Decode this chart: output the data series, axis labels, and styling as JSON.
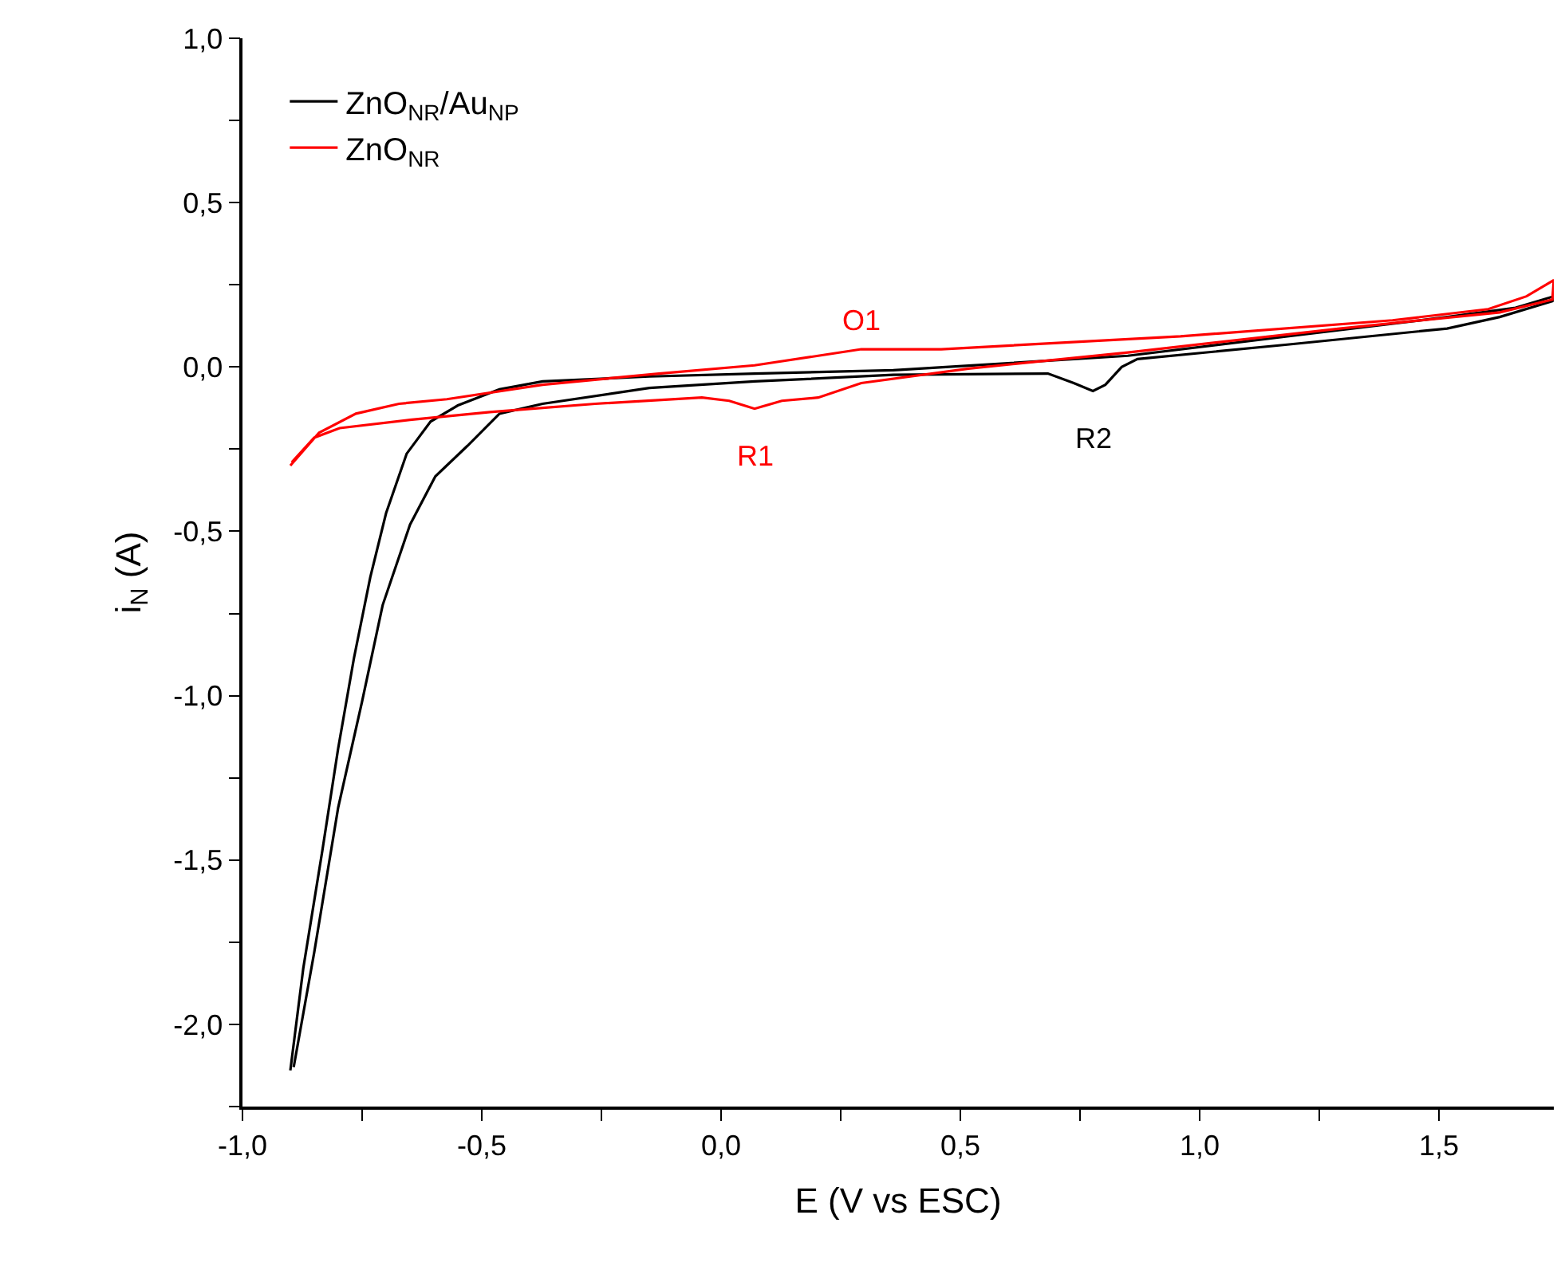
{
  "chart_data": {
    "type": "line",
    "xlabel": "E (V vs ESC)",
    "ylabel": "i$_{N}$ (A)",
    "xlim": [
      -1.0,
      1.74
    ],
    "ylim": [
      -2.25,
      1.0
    ],
    "xticks": [
      {
        "value": -1.0,
        "label": "-1,0"
      },
      {
        "value": -0.75,
        "label": null
      },
      {
        "value": -0.5,
        "label": "-0,5"
      },
      {
        "value": -0.25,
        "label": null
      },
      {
        "value": 0.0,
        "label": "0,0"
      },
      {
        "value": 0.25,
        "label": null
      },
      {
        "value": 0.5,
        "label": "0,5"
      },
      {
        "value": 0.75,
        "label": null
      },
      {
        "value": 1.0,
        "label": "1,0"
      },
      {
        "value": 1.25,
        "label": null
      },
      {
        "value": 1.5,
        "label": "1,5"
      }
    ],
    "yticks": [
      {
        "value": -2.25,
        "label": null
      },
      {
        "value": -2.0,
        "label": "-2,0"
      },
      {
        "value": -1.75,
        "label": null
      },
      {
        "value": -1.5,
        "label": "-1,5"
      },
      {
        "value": -1.25,
        "label": null
      },
      {
        "value": -1.0,
        "label": "-1,0"
      },
      {
        "value": -0.75,
        "label": null
      },
      {
        "value": -0.5,
        "label": "-0,5"
      },
      {
        "value": -0.25,
        "label": null
      },
      {
        "value": 0.0,
        "label": "0,0"
      },
      {
        "value": 0.25,
        "label": null
      },
      {
        "value": 0.5,
        "label": "0,5"
      },
      {
        "value": 0.75,
        "label": null
      },
      {
        "value": 1.0,
        "label": "1,0"
      }
    ],
    "legend": "top left",
    "marker": "none",
    "line_style": "solid",
    "series": [
      {
        "name": "ZnO$_{NR}$/Au$_{NP}$",
        "color": "#000000",
        "x": [
          -0.9,
          -0.873,
          -0.833,
          -0.8,
          -0.767,
          -0.733,
          -0.7,
          -0.657,
          -0.607,
          -0.55,
          -0.463,
          -0.373,
          -0.15,
          0.07,
          0.36,
          0.85,
          1.183,
          1.517,
          1.66,
          1.74,
          1.737,
          1.627,
          1.517,
          1.183,
          0.87,
          0.837,
          0.803,
          0.777,
          0.737,
          0.683,
          0.36,
          0.07,
          -0.15,
          -0.373,
          -0.463,
          -0.53,
          -0.597,
          -0.65,
          -0.707,
          -0.75,
          -0.8,
          -0.85,
          -0.893
        ],
        "values": [
          -2.14,
          -1.83,
          -1.47,
          -1.16,
          -0.885,
          -0.64,
          -0.445,
          -0.264,
          -0.166,
          -0.117,
          -0.068,
          -0.044,
          -0.029,
          -0.02,
          -0.01,
          0.034,
          0.093,
          0.152,
          0.18,
          0.215,
          0.2,
          0.152,
          0.117,
          0.068,
          0.024,
          0.0,
          -0.054,
          -0.073,
          -0.049,
          -0.02,
          -0.024,
          -0.044,
          -0.064,
          -0.112,
          -0.142,
          -0.24,
          -0.333,
          -0.48,
          -0.724,
          -1.017,
          -1.34,
          -1.78,
          -2.13
        ]
      },
      {
        "name": "ZnO$_{NR}$",
        "color": "#ff0000",
        "x": [
          -0.9,
          -0.84,
          -0.763,
          -0.673,
          -0.573,
          -0.373,
          -0.13,
          0.07,
          0.203,
          0.293,
          0.46,
          0.96,
          1.403,
          1.603,
          1.683,
          1.74,
          1.737,
          1.627,
          1.293,
          0.85,
          0.517,
          0.293,
          0.203,
          0.127,
          0.07,
          0.017,
          -0.04,
          -0.263,
          -0.483,
          -0.65,
          -0.797,
          -0.85,
          -0.897
        ],
        "values": [
          -0.3,
          -0.2,
          -0.142,
          -0.112,
          -0.098,
          -0.054,
          -0.02,
          0.005,
          0.034,
          0.054,
          0.054,
          0.093,
          0.142,
          0.176,
          0.215,
          0.264,
          0.205,
          0.166,
          0.117,
          0.044,
          -0.005,
          -0.049,
          -0.093,
          -0.103,
          -0.127,
          -0.103,
          -0.093,
          -0.112,
          -0.137,
          -0.161,
          -0.186,
          -0.215,
          -0.29
        ]
      }
    ],
    "annotations": [
      {
        "text": "O1",
        "x": 0.293,
        "y": 0.054
      },
      {
        "text": "R1",
        "x": 0.07,
        "y": -0.127
      },
      {
        "text": "R2",
        "x": 0.777,
        "y": -0.073
      }
    ]
  }
}
